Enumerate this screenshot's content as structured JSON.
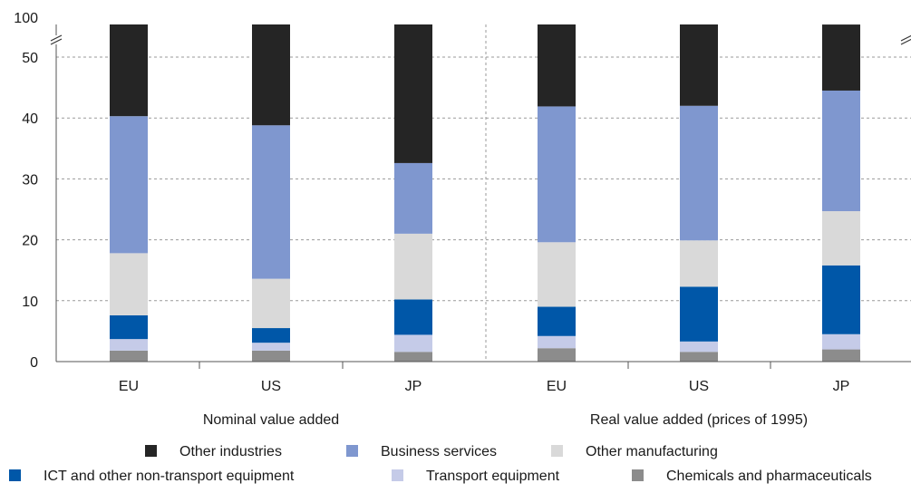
{
  "chart_data": {
    "type": "bar",
    "stacked": true,
    "grid": true,
    "axis_break": true,
    "legend_position": "bottom",
    "y_ticks": [
      "0",
      "10",
      "20",
      "30",
      "40",
      "50",
      "100"
    ],
    "ylim": [
      0,
      55
    ],
    "groups": [
      {
        "label": "Nominal value added",
        "categories": [
          "EU",
          "US",
          "JP"
        ]
      },
      {
        "label": "Real value added (prices of 1995)",
        "categories": [
          "EU",
          "US",
          "JP"
        ]
      }
    ],
    "categories": [
      "EU",
      "US",
      "JP",
      "EU",
      "US",
      "JP"
    ],
    "series": [
      {
        "name": "Chemicals and pharmaceuticals",
        "color": "#8c8c8c",
        "values": [
          1.8,
          1.8,
          1.6,
          2.2,
          1.6,
          2.0
        ]
      },
      {
        "name": "Transport equipment",
        "color": "#c5cbe8",
        "values": [
          1.9,
          1.3,
          2.8,
          2.0,
          1.7,
          2.5
        ]
      },
      {
        "name": "ICT and other non-transport equipment",
        "color": "#0057a8",
        "values": [
          3.9,
          2.4,
          5.8,
          4.8,
          9.0,
          11.3
        ]
      },
      {
        "name": "Other manufacturing",
        "color": "#d9d9d9",
        "values": [
          10.2,
          8.1,
          10.8,
          10.6,
          7.6,
          8.9
        ]
      },
      {
        "name": "Business services",
        "color": "#7f97cf",
        "values": [
          22.5,
          25.2,
          11.6,
          22.3,
          22.1,
          19.8
        ]
      },
      {
        "name": "Other industries",
        "color": "#252525",
        "values": [
          59.7,
          61.2,
          67.4,
          58.1,
          58.0,
          55.4
        ]
      }
    ]
  },
  "legend_row1": [
    "Other industries",
    "Business services",
    "Other manufacturing"
  ],
  "legend_row2": [
    "ICT and other non-transport equipment",
    "Transport equipment",
    "Chemicals and pharmaceuticals"
  ]
}
